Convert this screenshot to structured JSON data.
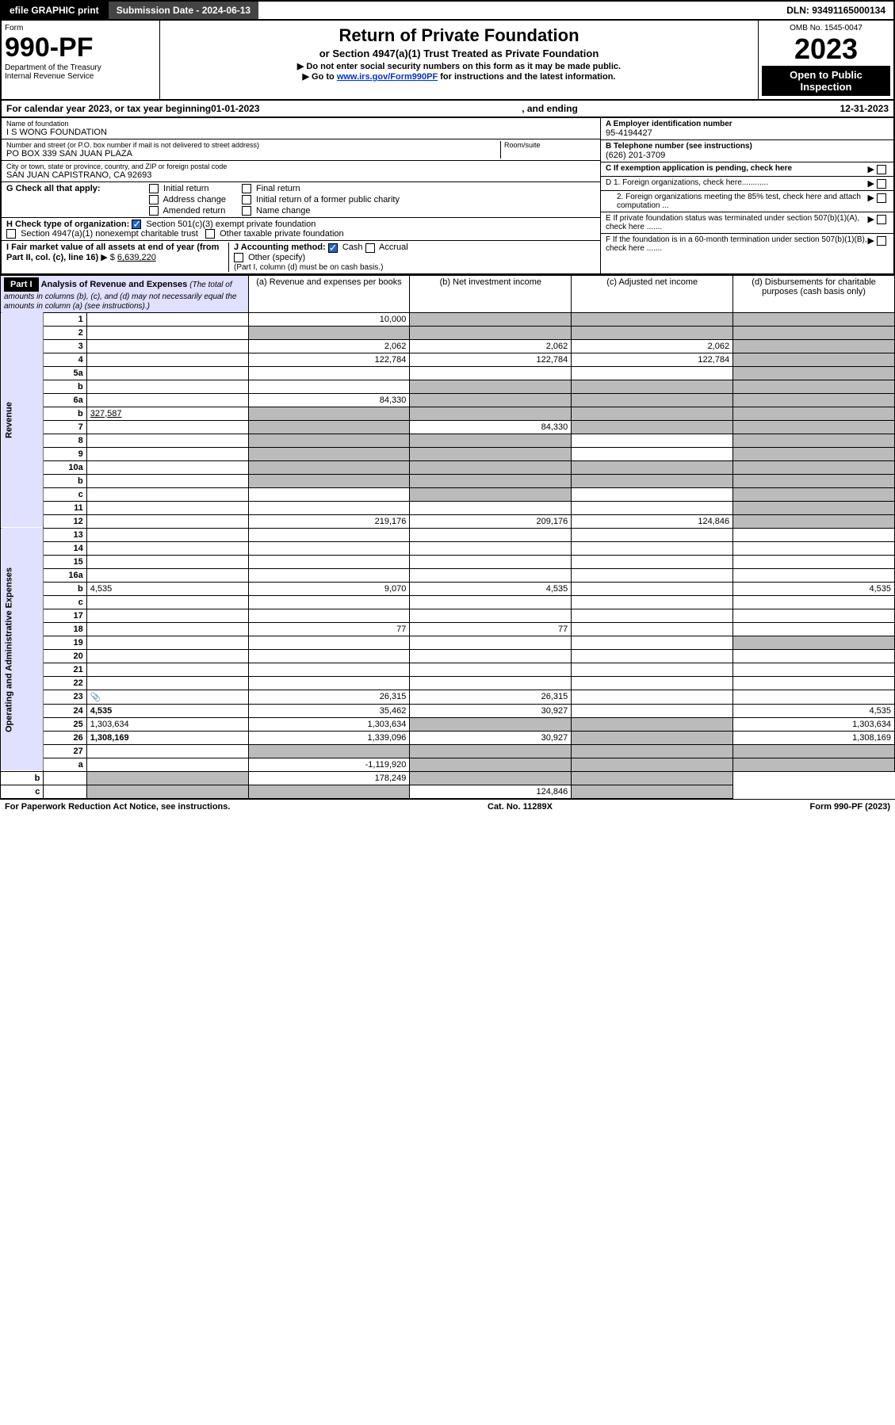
{
  "topbar": {
    "efile": "efile GRAPHIC print",
    "sub_label": "Submission Date - 2024-06-13",
    "dln": "DLN: 93491165000134"
  },
  "header": {
    "form_label": "Form",
    "form_no": "990-PF",
    "dept": "Department of the Treasury",
    "irs": "Internal Revenue Service",
    "title": "Return of Private Foundation",
    "subtitle": "or Section 4947(a)(1) Trust Treated as Private Foundation",
    "instr1": "Do not enter social security numbers on this form as it may be made public.",
    "instr2_pre": "Go to ",
    "instr2_link": "www.irs.gov/Form990PF",
    "instr2_post": " for instructions and the latest information.",
    "omb": "OMB No. 1545-0047",
    "year": "2023",
    "open": "Open to Public Inspection"
  },
  "calyear": {
    "pre": "For calendar year 2023, or tax year beginning ",
    "begin": "01-01-2023",
    "mid": ", and ending ",
    "end": "12-31-2023"
  },
  "info_l": {
    "name_lbl": "Name of foundation",
    "name": "I S WONG FOUNDATION",
    "addr_lbl": "Number and street (or P.O. box number if mail is not delivered to street address)",
    "addr": "PO BOX 339 SAN JUAN PLAZA",
    "room_lbl": "Room/suite",
    "city_lbl": "City or town, state or province, country, and ZIP or foreign postal code",
    "city": "SAN JUAN CAPISTRANO, CA  92693"
  },
  "info_r": {
    "a_lbl": "A Employer identification number",
    "a_val": "95-4194427",
    "b_lbl": "B Telephone number (see instructions)",
    "b_val": "(626) 201-3709",
    "c_lbl": "C If exemption application is pending, check here",
    "d1": "D 1. Foreign organizations, check here............",
    "d2": "2. Foreign organizations meeting the 85% test, check here and attach computation ...",
    "e": "E  If private foundation status was terminated under section 507(b)(1)(A), check here .......",
    "f": "F  If the foundation is in a 60-month termination under section 507(b)(1)(B), check here ......."
  },
  "g": {
    "lbl": "G Check all that apply:",
    "opts": [
      "Initial return",
      "Final return",
      "Address change",
      "Initial return of a former public charity",
      "Amended return",
      "Name change"
    ]
  },
  "h": {
    "lbl": "H Check type of organization:",
    "o1": "Section 501(c)(3) exempt private foundation",
    "o2": "Section 4947(a)(1) nonexempt charitable trust",
    "o3": "Other taxable private foundation"
  },
  "i": {
    "lbl": "I Fair market value of all assets at end of year (from Part II, col. (c), line 16)",
    "val": "6,639,220"
  },
  "j": {
    "lbl": "J Accounting method:",
    "cash": "Cash",
    "accr": "Accrual",
    "other": "Other (specify)",
    "note": "(Part I, column (d) must be on cash basis.)"
  },
  "part1": {
    "hdr": "Part I",
    "title": "Analysis of Revenue and Expenses",
    "note": "(The total of amounts in columns (b), (c), and (d) may not necessarily equal the amounts in column (a) (see instructions).)",
    "col_a": "(a)   Revenue and expenses per books",
    "col_b": "(b)   Net investment income",
    "col_c": "(c)   Adjusted net income",
    "col_d": "(d)   Disbursements for charitable purposes (cash basis only)"
  },
  "sec_rev": "Revenue",
  "sec_exp": "Operating and Administrative Expenses",
  "rows": [
    {
      "n": "1",
      "d": "",
      "a": "10,000",
      "b": "",
      "c": "",
      "gb": true,
      "gc": true,
      "gd": true
    },
    {
      "n": "2",
      "d": "",
      "a": "",
      "b": "",
      "c": "",
      "ga": true,
      "gb": true,
      "gc": true,
      "gd": true
    },
    {
      "n": "3",
      "d": "",
      "a": "2,062",
      "b": "2,062",
      "c": "2,062",
      "gd": true
    },
    {
      "n": "4",
      "d": "",
      "a": "122,784",
      "b": "122,784",
      "c": "122,784",
      "gd": true
    },
    {
      "n": "5a",
      "d": "",
      "a": "",
      "b": "",
      "c": "",
      "gd": true
    },
    {
      "n": "b",
      "d": "",
      "a": "",
      "b": "",
      "c": "",
      "gb": true,
      "gc": true,
      "gd": true,
      "gval": true
    },
    {
      "n": "6a",
      "d": "",
      "a": "84,330",
      "b": "",
      "c": "",
      "gb": true,
      "gc": true,
      "gd": true
    },
    {
      "n": "b",
      "d": "",
      "inline": "327,587",
      "a": "",
      "b": "",
      "c": "",
      "ga": true,
      "gb": true,
      "gc": true,
      "gd": true
    },
    {
      "n": "7",
      "d": "",
      "a": "",
      "b": "84,330",
      "c": "",
      "ga": true,
      "gc": true,
      "gd": true
    },
    {
      "n": "8",
      "d": "",
      "a": "",
      "b": "",
      "c": "",
      "ga": true,
      "gb": true,
      "gd": true
    },
    {
      "n": "9",
      "d": "",
      "a": "",
      "b": "",
      "c": "",
      "ga": true,
      "gb": true,
      "gd": true
    },
    {
      "n": "10a",
      "d": "",
      "a": "",
      "b": "",
      "c": "",
      "ga": true,
      "gb": true,
      "gc": true,
      "gd": true,
      "gval": true
    },
    {
      "n": "b",
      "d": "",
      "a": "",
      "b": "",
      "c": "",
      "ga": true,
      "gb": true,
      "gc": true,
      "gd": true,
      "gval": true
    },
    {
      "n": "c",
      "d": "",
      "a": "",
      "b": "",
      "c": "",
      "gb": true,
      "gd": true
    },
    {
      "n": "11",
      "d": "",
      "a": "",
      "b": "",
      "c": "",
      "gd": true
    },
    {
      "n": "12",
      "d": "",
      "a": "219,176",
      "b": "209,176",
      "c": "124,846",
      "gd": true,
      "bold": true
    },
    {
      "n": "13",
      "d": "",
      "a": "",
      "b": "",
      "c": ""
    },
    {
      "n": "14",
      "d": "",
      "a": "",
      "b": "",
      "c": ""
    },
    {
      "n": "15",
      "d": "",
      "a": "",
      "b": "",
      "c": ""
    },
    {
      "n": "16a",
      "d": "",
      "a": "",
      "b": "",
      "c": ""
    },
    {
      "n": "b",
      "d": "4,535",
      "a": "9,070",
      "b": "4,535",
      "c": ""
    },
    {
      "n": "c",
      "d": "",
      "a": "",
      "b": "",
      "c": ""
    },
    {
      "n": "17",
      "d": "",
      "a": "",
      "b": "",
      "c": ""
    },
    {
      "n": "18",
      "d": "",
      "a": "77",
      "b": "77",
      "c": ""
    },
    {
      "n": "19",
      "d": "",
      "a": "",
      "b": "",
      "c": "",
      "gd": true
    },
    {
      "n": "20",
      "d": "",
      "a": "",
      "b": "",
      "c": ""
    },
    {
      "n": "21",
      "d": "",
      "a": "",
      "b": "",
      "c": ""
    },
    {
      "n": "22",
      "d": "",
      "a": "",
      "b": "",
      "c": ""
    },
    {
      "n": "23",
      "d": "",
      "a": "26,315",
      "b": "26,315",
      "c": "",
      "icon": true
    },
    {
      "n": "24",
      "d": "4,535",
      "a": "35,462",
      "b": "30,927",
      "c": "",
      "bold": true
    },
    {
      "n": "25",
      "d": "1,303,634",
      "a": "1,303,634",
      "b": "",
      "c": "",
      "gb": true,
      "gc": true
    },
    {
      "n": "26",
      "d": "1,308,169",
      "a": "1,339,096",
      "b": "30,927",
      "c": "",
      "bold": true,
      "gc": true
    },
    {
      "n": "27",
      "d": "",
      "a": "",
      "b": "",
      "c": "",
      "ga": true,
      "gb": true,
      "gc": true,
      "gd": true
    },
    {
      "n": "a",
      "d": "",
      "a": "-1,119,920",
      "b": "",
      "c": "",
      "gb": true,
      "gc": true,
      "gd": true,
      "bold": true
    },
    {
      "n": "b",
      "d": "",
      "a": "",
      "b": "178,249",
      "c": "",
      "ga": true,
      "gc": true,
      "gd": true,
      "bold": true
    },
    {
      "n": "c",
      "d": "",
      "a": "",
      "b": "",
      "c": "124,846",
      "ga": true,
      "gb": true,
      "gd": true,
      "bold": true
    }
  ],
  "footer": {
    "l": "For Paperwork Reduction Act Notice, see instructions.",
    "m": "Cat. No. 11289X",
    "r": "Form 990-PF (2023)"
  }
}
